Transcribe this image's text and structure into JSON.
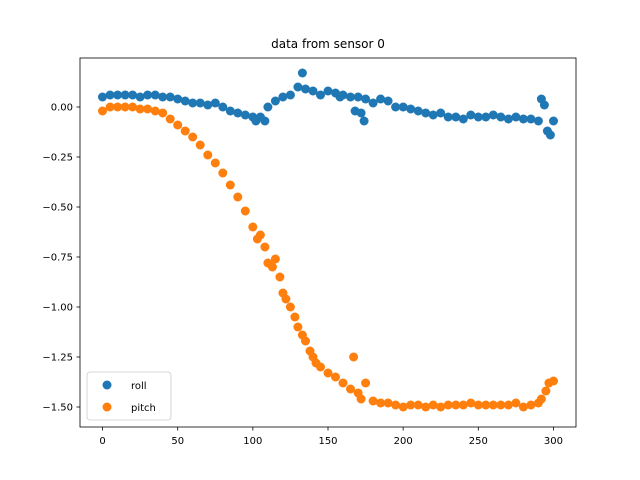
{
  "chart_data": {
    "type": "scatter",
    "title": "data from sensor 0",
    "xlabel": "",
    "ylabel": "",
    "xlim": [
      -15,
      315
    ],
    "ylim": [
      -1.6,
      0.245
    ],
    "xticks": [
      0,
      50,
      100,
      150,
      200,
      250,
      300
    ],
    "xtick_labels": [
      "0",
      "50",
      "100",
      "150",
      "200",
      "250",
      "300"
    ],
    "yticks": [
      0.0,
      -0.25,
      -0.5,
      -0.75,
      -1.0,
      -1.25,
      -1.5
    ],
    "ytick_labels": [
      "0.00",
      "−0.25",
      "−0.50",
      "−0.75",
      "−1.00",
      "−1.25",
      "−1.50"
    ],
    "grid": false,
    "legend_position": "lower-left",
    "series": [
      {
        "name": "roll",
        "color": "#1f77b4",
        "x": [
          0,
          5,
          10,
          15,
          20,
          25,
          30,
          35,
          40,
          45,
          50,
          55,
          60,
          65,
          70,
          75,
          80,
          85,
          90,
          95,
          100,
          102,
          105,
          108,
          110,
          115,
          120,
          125,
          130,
          133,
          135,
          140,
          145,
          150,
          155,
          158,
          160,
          165,
          168,
          170,
          172,
          174,
          175,
          180,
          185,
          190,
          195,
          200,
          205,
          210,
          215,
          220,
          225,
          230,
          235,
          240,
          245,
          250,
          255,
          260,
          265,
          270,
          275,
          280,
          285,
          290,
          292,
          294,
          296,
          298,
          300
        ],
        "y": [
          0.05,
          0.06,
          0.06,
          0.06,
          0.06,
          0.05,
          0.06,
          0.06,
          0.05,
          0.05,
          0.04,
          0.03,
          0.02,
          0.02,
          0.01,
          0.02,
          0.0,
          -0.02,
          -0.03,
          -0.04,
          -0.05,
          -0.07,
          -0.05,
          -0.07,
          0.0,
          0.03,
          0.05,
          0.06,
          0.1,
          0.17,
          0.09,
          0.08,
          0.06,
          0.08,
          0.07,
          0.05,
          0.06,
          0.05,
          -0.02,
          0.05,
          -0.03,
          -0.07,
          0.04,
          0.02,
          0.04,
          0.03,
          0.0,
          0.0,
          -0.01,
          -0.02,
          -0.03,
          -0.04,
          -0.03,
          -0.05,
          -0.05,
          -0.06,
          -0.04,
          -0.05,
          -0.05,
          -0.04,
          -0.05,
          -0.06,
          -0.05,
          -0.06,
          -0.06,
          -0.07,
          0.04,
          0.01,
          -0.12,
          -0.14,
          -0.07
        ]
      },
      {
        "name": "pitch",
        "color": "#ff7f0e",
        "x": [
          0,
          5,
          10,
          15,
          20,
          25,
          30,
          35,
          40,
          45,
          50,
          55,
          60,
          65,
          70,
          75,
          80,
          85,
          90,
          95,
          100,
          103,
          105,
          108,
          110,
          113,
          115,
          118,
          120,
          122,
          125,
          128,
          130,
          133,
          135,
          138,
          140,
          142,
          145,
          150,
          155,
          160,
          165,
          167,
          170,
          172,
          175,
          180,
          185,
          190,
          195,
          200,
          205,
          210,
          215,
          220,
          225,
          230,
          235,
          240,
          245,
          250,
          255,
          260,
          265,
          270,
          275,
          280,
          285,
          290,
          292,
          295,
          297,
          300
        ],
        "y": [
          -0.02,
          0.0,
          0.0,
          0.0,
          0.0,
          -0.01,
          -0.01,
          -0.02,
          -0.03,
          -0.06,
          -0.09,
          -0.12,
          -0.15,
          -0.19,
          -0.24,
          -0.28,
          -0.33,
          -0.39,
          -0.45,
          -0.52,
          -0.6,
          -0.66,
          -0.64,
          -0.7,
          -0.78,
          -0.8,
          -0.76,
          -0.85,
          -0.93,
          -0.96,
          -1.0,
          -1.05,
          -1.1,
          -1.14,
          -1.17,
          -1.22,
          -1.25,
          -1.28,
          -1.3,
          -1.33,
          -1.35,
          -1.38,
          -1.41,
          -1.25,
          -1.43,
          -1.46,
          -1.38,
          -1.47,
          -1.48,
          -1.48,
          -1.49,
          -1.5,
          -1.49,
          -1.49,
          -1.5,
          -1.49,
          -1.5,
          -1.49,
          -1.49,
          -1.49,
          -1.48,
          -1.49,
          -1.49,
          -1.49,
          -1.49,
          -1.49,
          -1.48,
          -1.5,
          -1.49,
          -1.48,
          -1.46,
          -1.42,
          -1.38,
          -1.37
        ]
      }
    ]
  }
}
